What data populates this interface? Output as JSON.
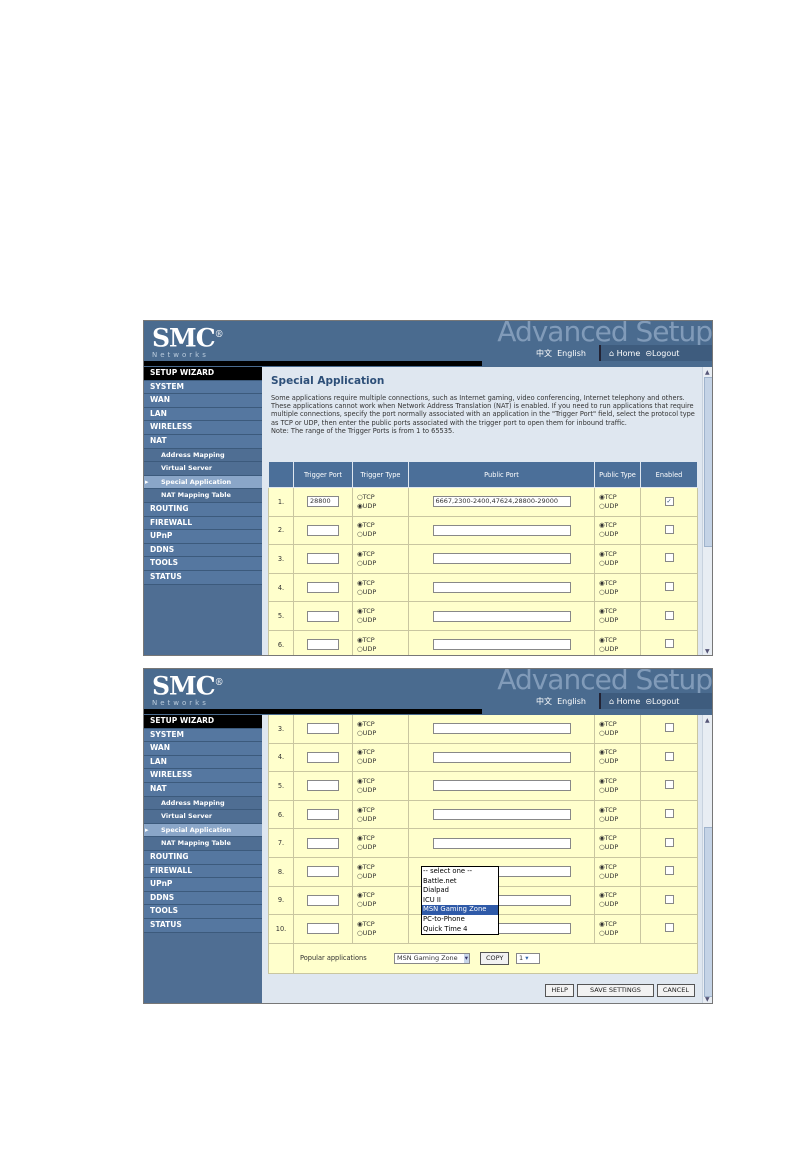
{
  "header": {
    "logo": "SMC",
    "logo_sub": "Networks",
    "banner": "Advanced Setup",
    "lang_chinese": "中文",
    "lang_english": "English",
    "home": "Home",
    "logout": "Logout"
  },
  "sidebar": [
    {
      "label": "SETUP WIZARD",
      "kind": "wiz"
    },
    {
      "label": "SYSTEM"
    },
    {
      "label": "WAN"
    },
    {
      "label": "LAN"
    },
    {
      "label": "WIRELESS"
    },
    {
      "label": "NAT"
    },
    {
      "label": "Address Mapping",
      "kind": "sub"
    },
    {
      "label": "Virtual Server",
      "kind": "sub"
    },
    {
      "label": "Special Application",
      "kind": "sub act"
    },
    {
      "label": "NAT Mapping Table",
      "kind": "sub"
    },
    {
      "label": "ROUTING"
    },
    {
      "label": "FIREWALL"
    },
    {
      "label": "UPnP"
    },
    {
      "label": "DDNS"
    },
    {
      "label": "TOOLS"
    },
    {
      "label": "STATUS"
    }
  ],
  "page": {
    "title": "Special Application",
    "description": "Some applications require multiple connections, such as Internet gaming, video conferencing, Internet telephony and others. These applications cannot work when Network Address Translation (NAT) is enabled. If you need to run applications that require multiple connections, specify the port normally associated with an application in the \"Trigger Port\" field, select the protocol type as TCP or UDP, then enter the public ports associated with the trigger port to open them for inbound traffic.",
    "note": "Note: The range of the Trigger Ports is from 1 to 65535."
  },
  "table": {
    "headers": [
      "",
      "Trigger Port",
      "Trigger Type",
      "Public Port",
      "Public Type",
      "Enabled"
    ],
    "tcp": "TCP",
    "udp": "UDP",
    "rows": [
      {
        "num": "1.",
        "trigger_port": "28800",
        "trigger_type": "UDP",
        "public_port": "6667,2300-2400,47624,28800-29000",
        "public_type": "TCP",
        "enabled": true
      },
      {
        "num": "2.",
        "trigger_port": "",
        "trigger_type": "TCP",
        "public_port": "",
        "public_type": "TCP",
        "enabled": false
      },
      {
        "num": "3.",
        "trigger_port": "",
        "trigger_type": "TCP",
        "public_port": "",
        "public_type": "TCP",
        "enabled": false
      },
      {
        "num": "4.",
        "trigger_port": "",
        "trigger_type": "TCP",
        "public_port": "",
        "public_type": "TCP",
        "enabled": false
      },
      {
        "num": "5.",
        "trigger_port": "",
        "trigger_type": "TCP",
        "public_port": "",
        "public_type": "TCP",
        "enabled": false
      },
      {
        "num": "6.",
        "trigger_port": "",
        "trigger_type": "TCP",
        "public_port": "",
        "public_type": "TCP",
        "enabled": false
      },
      {
        "num": "7.",
        "trigger_port": "",
        "trigger_type": "TCP",
        "public_port": "",
        "public_type": "TCP",
        "enabled": false
      },
      {
        "num": "8.",
        "trigger_port": "",
        "trigger_type": "TCP",
        "public_port": "",
        "public_type": "TCP",
        "enabled": false
      },
      {
        "num": "9.",
        "trigger_port": "",
        "trigger_type": "TCP",
        "public_port": "",
        "public_type": "TCP",
        "enabled": false
      },
      {
        "num": "10.",
        "trigger_port": "",
        "trigger_type": "TCP",
        "public_port": "",
        "public_type": "TCP",
        "enabled": false
      }
    ]
  },
  "popular": {
    "label": "Popular applications",
    "selected": "MSN Gaming Zone",
    "options": [
      "-- select one --",
      "Battle.net",
      "Dialpad",
      "ICU II",
      "MSN Gaming Zone",
      "PC-to-Phone",
      "Quick Time 4"
    ],
    "copy": "COPY",
    "row_select": "1"
  },
  "buttons": {
    "help": "HELP",
    "save": "SAVE SETTINGS",
    "cancel": "CANCEL"
  }
}
